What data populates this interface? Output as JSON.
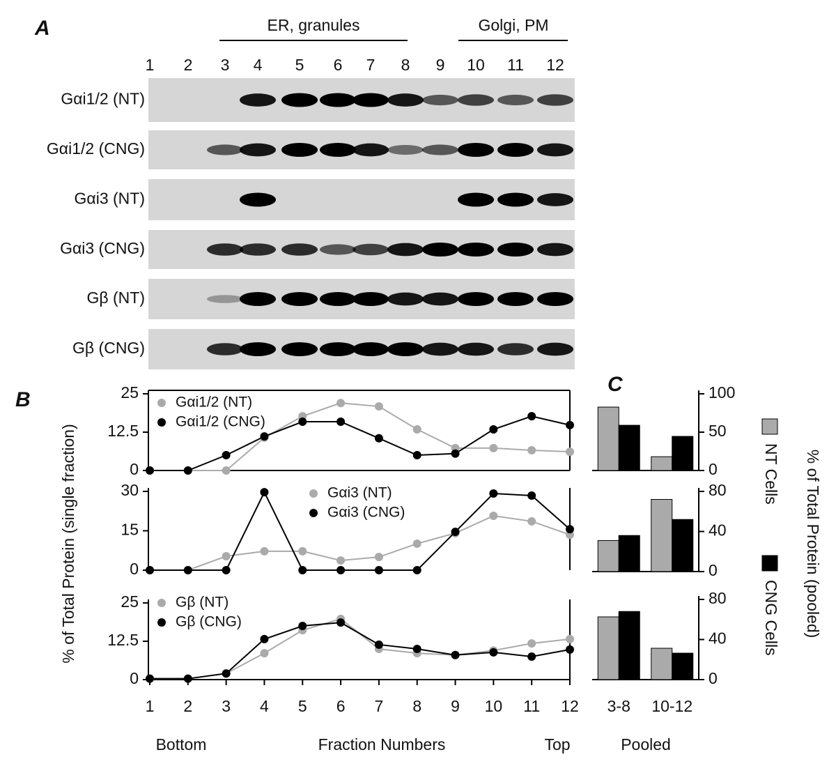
{
  "figure": {
    "panel_labels": [
      "A",
      "B",
      "C"
    ],
    "groups": [
      "ER, granules",
      "Golgi, PM"
    ],
    "lanes": [
      "1",
      "2",
      "3",
      "4",
      "5",
      "6",
      "7",
      "8",
      "9",
      "10",
      "11",
      "12"
    ],
    "blots": [
      "Gαi1/2 (NT)",
      "Gαi1/2 (CNG)",
      "Gαi3 (NT)",
      "Gαi3 (CNG)",
      "Gβ (NT)",
      "Gβ (CNG)"
    ],
    "ylabel_left": "% of Total  Protein (single fraction)",
    "ylabel_right": "% of Total Protein (pooled)",
    "bottom": "Bottom",
    "top": "Top"
  },
  "chart_data": [
    {
      "type": "line",
      "x": [
        1,
        2,
        3,
        4,
        5,
        6,
        7,
        8,
        9,
        10,
        11,
        12
      ],
      "xlim": [
        1,
        12
      ],
      "ylim": [
        0,
        25
      ],
      "yticks": [
        0,
        12.5,
        25
      ],
      "series": [
        {
          "name": "Gαi1/2 (NT)",
          "color": "#aaaaaa",
          "values": [
            0,
            0,
            0,
            10.7,
            17.7,
            22,
            20.9,
            13.4,
            7.3,
            7.3,
            6.6,
            6.1
          ]
        },
        {
          "name": "Gαi1/2 (CNG)",
          "color": "#000000",
          "values": [
            0,
            0,
            5,
            11.1,
            15.9,
            15.9,
            10.5,
            5,
            5.5,
            13.4,
            17.7,
            14.8
          ]
        }
      ]
    },
    {
      "type": "line",
      "x": [
        1,
        2,
        3,
        4,
        5,
        6,
        7,
        8,
        9,
        10,
        11,
        12
      ],
      "xlim": [
        1,
        12
      ],
      "ylim": [
        0,
        30
      ],
      "yticks": [
        0,
        15,
        30
      ],
      "series": [
        {
          "name": "Gαi3 (NT)",
          "color": "#aaaaaa",
          "values": [
            0,
            0,
            5.3,
            7.2,
            7.2,
            3.7,
            5,
            10.1,
            14.1,
            20.7,
            18.6,
            13.5
          ]
        },
        {
          "name": "Gαi3 (CNG)",
          "color": "#000000",
          "values": [
            0,
            0,
            0,
            29.7,
            0,
            0,
            0,
            0,
            14.6,
            29.2,
            28.4,
            15.6
          ]
        }
      ]
    },
    {
      "type": "line",
      "x": [
        1,
        2,
        3,
        4,
        5,
        6,
        7,
        8,
        9,
        10,
        11,
        12
      ],
      "xlim": [
        1,
        12
      ],
      "ylim": [
        0,
        25
      ],
      "yticks": [
        0,
        12.5,
        25
      ],
      "xticks": [
        1,
        2,
        3,
        4,
        5,
        6,
        7,
        8,
        9,
        10,
        11,
        12
      ],
      "xlabel": "Fraction Numbers",
      "series": [
        {
          "name": "Gβ (NT)",
          "color": "#aaaaaa",
          "values": [
            0.3,
            0.3,
            2,
            8.6,
            16.1,
            19.8,
            10,
            8.6,
            8,
            9.5,
            11.8,
            13.2
          ]
        },
        {
          "name": "Gβ (CNG)",
          "color": "#000000",
          "values": [
            0.3,
            0.3,
            2,
            13.2,
            17.5,
            18.6,
            11.4,
            10,
            8,
            8.9,
            7.5,
            9.8
          ]
        }
      ]
    },
    {
      "type": "bar",
      "categories": [
        null,
        null
      ],
      "ylim": [
        0,
        100
      ],
      "yticks": [
        0,
        50,
        100
      ],
      "series": [
        {
          "name": "NT Cells",
          "color": "#aaaaaa",
          "values": [
            82.7,
            18
          ]
        },
        {
          "name": "CNG Cells",
          "color": "#000000",
          "values": [
            59,
            44.5
          ]
        }
      ]
    },
    {
      "type": "bar",
      "categories": [
        null,
        null
      ],
      "ylim": [
        0,
        80
      ],
      "yticks": [
        0,
        40,
        80
      ],
      "series": [
        {
          "color": "#aaaaaa",
          "values": [
            31,
            72
          ]
        },
        {
          "color": "#000000",
          "values": [
            36,
            52
          ]
        }
      ]
    },
    {
      "type": "bar",
      "categories": [
        "3-8",
        "10-12"
      ],
      "ylim": [
        0,
        80
      ],
      "yticks": [
        0,
        40,
        80
      ],
      "xlabel": "Pooled",
      "series": [
        {
          "color": "#aaaaaa",
          "values": [
            62.6,
            31.3
          ]
        },
        {
          "color": "#000000",
          "values": [
            68,
            26.4
          ]
        }
      ]
    }
  ]
}
